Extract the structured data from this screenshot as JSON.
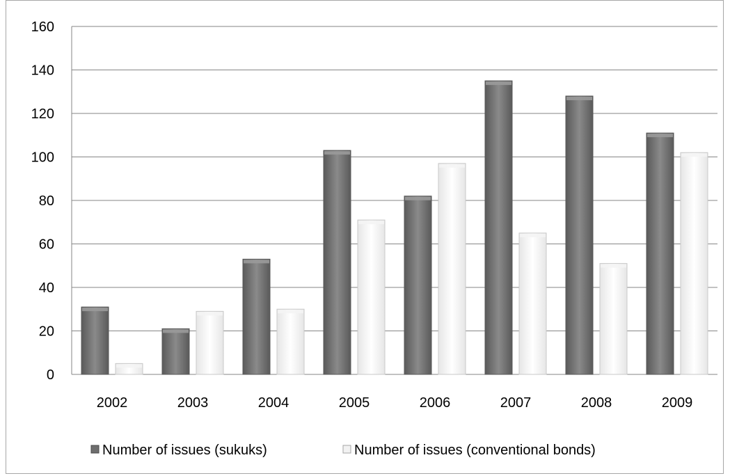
{
  "chart_data": {
    "type": "bar",
    "title": "",
    "xlabel": "",
    "ylabel": "",
    "categories": [
      "2002",
      "2003",
      "2004",
      "2005",
      "2006",
      "2007",
      "2008",
      "2009"
    ],
    "ylim": [
      0,
      160
    ],
    "yticks": [
      "0",
      "20",
      "40",
      "60",
      "80",
      "100",
      "120",
      "140",
      "160"
    ],
    "grid": true,
    "legend_position": "bottom",
    "series": [
      {
        "name": "Number of issues (sukuks)",
        "color": "#7f7f7f",
        "values": [
          31,
          21,
          53,
          103,
          82,
          135,
          128,
          111
        ]
      },
      {
        "name": "Number of issues (conventional bonds)",
        "color": "#ffffff",
        "values": [
          5,
          29,
          30,
          71,
          97,
          65,
          51,
          102
        ]
      }
    ]
  }
}
